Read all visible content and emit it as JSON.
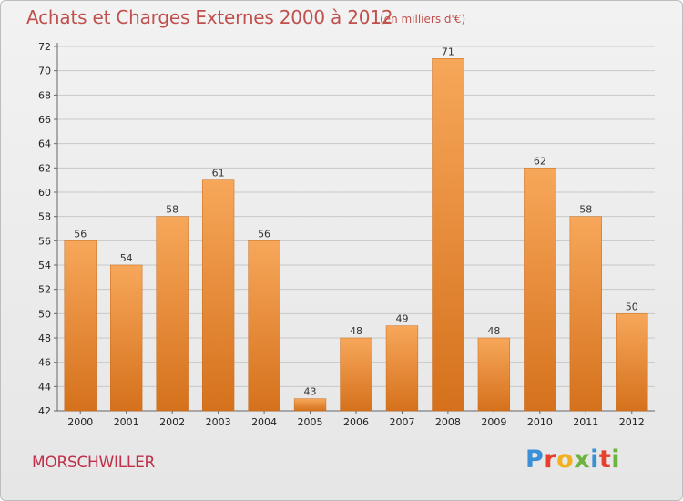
{
  "title": "Achats et Charges Externes 2000 à 2012",
  "subtitle": "(en milliers d'€)",
  "commune": "MORSCHWILLER",
  "logo": {
    "letters": [
      "P",
      "r",
      "o",
      "x",
      "i",
      "t",
      "i"
    ],
    "colors": [
      "#3a8fd6",
      "#e8402f",
      "#f2b01e",
      "#6cb33f",
      "#3a8fd6",
      "#e8402f",
      "#6cb33f"
    ]
  },
  "colors": {
    "bar_top": "#f7a75a",
    "bar_bottom": "#d5711c",
    "title": "#c0504d",
    "grid": "#c8c8c8"
  },
  "chart_data": {
    "type": "bar",
    "title": "Achats et Charges Externes 2000 à 2012",
    "subtitle": "(en milliers d'€)",
    "categories": [
      "2000",
      "2001",
      "2002",
      "2003",
      "2004",
      "2005",
      "2006",
      "2007",
      "2008",
      "2009",
      "2010",
      "2011",
      "2012"
    ],
    "values": [
      56,
      54,
      58,
      61,
      56,
      43,
      48,
      49,
      71,
      48,
      62,
      58,
      50
    ],
    "ylim": [
      42,
      72
    ],
    "yticks": [
      42,
      44,
      46,
      48,
      50,
      52,
      54,
      56,
      58,
      60,
      62,
      64,
      66,
      68,
      70,
      72
    ],
    "grid": true,
    "xlabel": "",
    "ylabel": ""
  }
}
